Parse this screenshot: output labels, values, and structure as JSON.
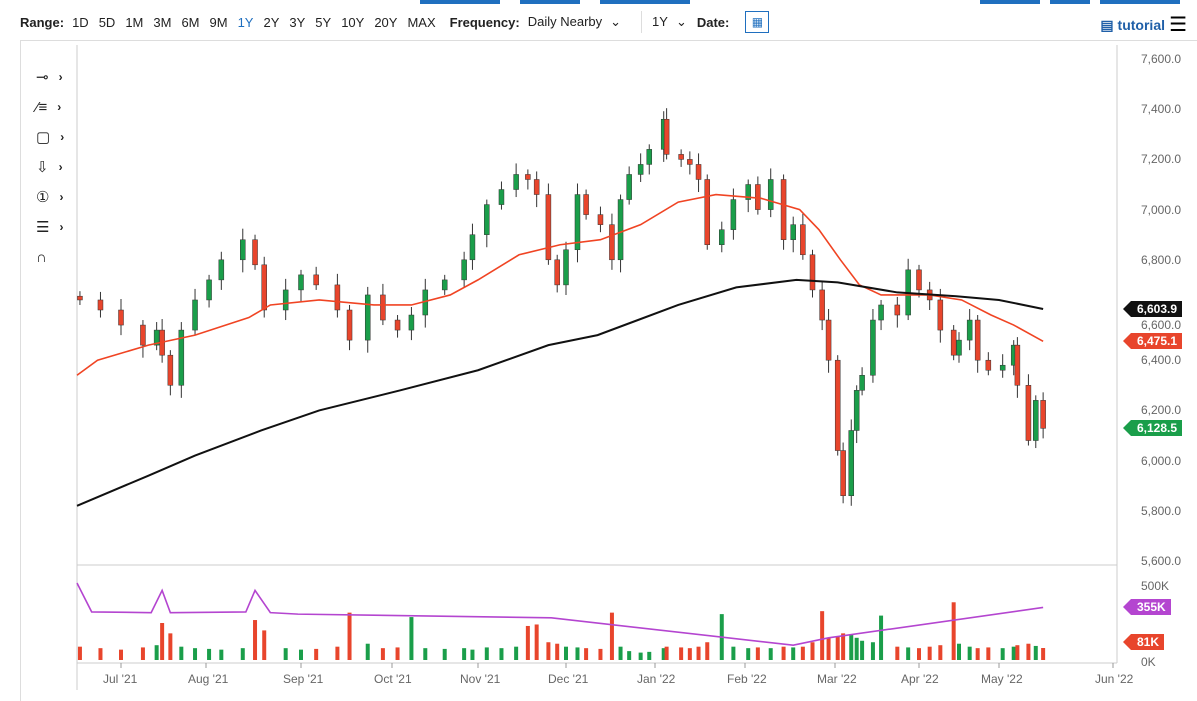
{
  "toolbar": {
    "range_label": "Range:",
    "ranges": [
      "1D",
      "5D",
      "1M",
      "3M",
      "6M",
      "9M",
      "1Y",
      "2Y",
      "3Y",
      "5Y",
      "10Y",
      "20Y",
      "MAX"
    ],
    "active_range": "1Y",
    "frequency_label": "Frequency:",
    "frequency_value": "Daily Nearby",
    "period_value": "1Y",
    "date_label": "Date:",
    "tutorial_label": "tutorial"
  },
  "tools": [
    "crosshair",
    "trendline",
    "rectangle",
    "arrow",
    "counter",
    "fibonacci",
    "magnet"
  ],
  "colors": {
    "up": "#1a9e4a",
    "down": "#e8452c",
    "ma_short": "#f04423",
    "ma_long": "#111111",
    "volume_ma": "#b445d0"
  },
  "chart_data": {
    "type": "candlestick",
    "y_ticks": [
      "7,600.0",
      "7,400.0",
      "7,200.0",
      "7,000.0",
      "6,800.0",
      "6,600.0",
      "6,400.0",
      "6,200.0",
      "6,000.0",
      "5,800.0",
      "5,600.0"
    ],
    "ylim": [
      5600,
      7600
    ],
    "volume_ticks": [
      "500K",
      "0K"
    ],
    "x_ticks": [
      "Jul '21",
      "Aug '21",
      "Sep '21",
      "Oct '21",
      "Nov '21",
      "Dec '21",
      "Jan '22",
      "Feb '22",
      "Mar '22",
      "Apr '22",
      "May '22",
      "Jun '22"
    ],
    "last_labels": {
      "ma_long": "6,603.9",
      "ma_short": "6,475.1",
      "close": "6,128.5",
      "volume_ma": "355K",
      "volume": "81K"
    },
    "points": [
      [
        "2021-06-17",
        6640,
        90
      ],
      [
        "2021-06-24",
        6600,
        80
      ],
      [
        "2021-07-01",
        6540,
        70
      ],
      [
        "2021-07-09",
        6460,
        85
      ],
      [
        "2021-07-14",
        6520,
        100
      ],
      [
        "2021-07-16",
        6420,
        250
      ],
      [
        "2021-07-19",
        6300,
        180
      ],
      [
        "2021-07-23",
        6520,
        90
      ],
      [
        "2021-07-28",
        6640,
        80
      ],
      [
        "2021-08-02",
        6720,
        75
      ],
      [
        "2021-08-06",
        6800,
        70
      ],
      [
        "2021-08-13",
        6880,
        80
      ],
      [
        "2021-08-17",
        6780,
        270
      ],
      [
        "2021-08-20",
        6600,
        200
      ],
      [
        "2021-08-27",
        6680,
        80
      ],
      [
        "2021-09-01",
        6740,
        70
      ],
      [
        "2021-09-06",
        6700,
        75
      ],
      [
        "2021-09-13",
        6600,
        90
      ],
      [
        "2021-09-17",
        6480,
        320
      ],
      [
        "2021-09-23",
        6660,
        110
      ],
      [
        "2021-09-28",
        6560,
        80
      ],
      [
        "2021-10-03",
        6520,
        85
      ],
      [
        "2021-10-08",
        6580,
        290
      ],
      [
        "2021-10-13",
        6680,
        80
      ],
      [
        "2021-10-20",
        6720,
        75
      ],
      [
        "2021-10-27",
        6800,
        80
      ],
      [
        "2021-10-30",
        6900,
        70
      ],
      [
        "2021-11-04",
        7020,
        85
      ],
      [
        "2021-11-09",
        7080,
        80
      ],
      [
        "2021-11-14",
        7140,
        90
      ],
      [
        "2021-11-18",
        7120,
        230
      ],
      [
        "2021-11-21",
        7060,
        240
      ],
      [
        "2021-11-25",
        6800,
        120
      ],
      [
        "2021-11-28",
        6700,
        110
      ],
      [
        "2021-12-01",
        6840,
        90
      ],
      [
        "2021-12-05",
        7060,
        85
      ],
      [
        "2021-12-08",
        6980,
        80
      ],
      [
        "2021-12-13",
        6940,
        75
      ],
      [
        "2021-12-17",
        6800,
        320
      ],
      [
        "2021-12-20",
        7040,
        90
      ],
      [
        "2021-12-23",
        7140,
        60
      ],
      [
        "2021-12-27",
        7180,
        50
      ],
      [
        "2021-12-30",
        7240,
        55
      ],
      [
        "2022-01-04",
        7360,
        80
      ],
      [
        "2022-01-05",
        7220,
        90
      ],
      [
        "2022-01-10",
        7200,
        85
      ],
      [
        "2022-01-13",
        7180,
        80
      ],
      [
        "2022-01-16",
        7120,
        90
      ],
      [
        "2022-01-19",
        6860,
        120
      ],
      [
        "2022-01-24",
        6920,
        310
      ],
      [
        "2022-01-28",
        7040,
        90
      ],
      [
        "2022-02-02",
        7100,
        80
      ],
      [
        "2022-02-05",
        7000,
        85
      ],
      [
        "2022-02-09",
        7120,
        80
      ],
      [
        "2022-02-13",
        6880,
        90
      ],
      [
        "2022-02-16",
        6940,
        85
      ],
      [
        "2022-02-19",
        6820,
        90
      ],
      [
        "2022-02-22",
        6680,
        120
      ],
      [
        "2022-02-25",
        6560,
        330
      ],
      [
        "2022-02-27",
        6400,
        150
      ],
      [
        "2022-03-02",
        6040,
        160
      ],
      [
        "2022-03-04",
        5860,
        180
      ],
      [
        "2022-03-07",
        6120,
        170
      ],
      [
        "2022-03-09",
        6280,
        150
      ],
      [
        "2022-03-11",
        6340,
        130
      ],
      [
        "2022-03-15",
        6560,
        120
      ],
      [
        "2022-03-18",
        6620,
        300
      ],
      [
        "2022-03-24",
        6580,
        90
      ],
      [
        "2022-03-28",
        6760,
        85
      ],
      [
        "2022-04-01",
        6680,
        80
      ],
      [
        "2022-04-05",
        6640,
        90
      ],
      [
        "2022-04-09",
        6520,
        100
      ],
      [
        "2022-04-14",
        6420,
        390
      ],
      [
        "2022-04-16",
        6480,
        110
      ],
      [
        "2022-04-20",
        6560,
        90
      ],
      [
        "2022-04-23",
        6400,
        80
      ],
      [
        "2022-04-27",
        6360,
        85
      ],
      [
        "2022-05-02",
        6380,
        80
      ],
      [
        "2022-05-05",
        6460,
        90
      ],
      [
        "2022-05-06",
        6300,
        100
      ],
      [
        "2022-05-09",
        6080,
        110
      ],
      [
        "2022-05-11",
        6240,
        95
      ],
      [
        "2022-05-13",
        6128.5,
        81
      ]
    ],
    "ma_short": [
      [
        "2021-06-16",
        6340
      ],
      [
        "2021-06-23",
        6400
      ],
      [
        "2021-07-11",
        6460
      ],
      [
        "2021-07-28",
        6500
      ],
      [
        "2021-08-15",
        6570
      ],
      [
        "2021-08-22",
        6620
      ],
      [
        "2021-09-07",
        6640
      ],
      [
        "2021-09-25",
        6620
      ],
      [
        "2021-10-08",
        6620
      ],
      [
        "2021-10-22",
        6660
      ],
      [
        "2021-11-01",
        6720
      ],
      [
        "2021-11-15",
        6820
      ],
      [
        "2021-11-29",
        6860
      ],
      [
        "2021-12-13",
        6880
      ],
      [
        "2021-12-27",
        6940
      ],
      [
        "2022-01-09",
        7030
      ],
      [
        "2022-01-22",
        7060
      ],
      [
        "2022-02-06",
        7045
      ],
      [
        "2022-02-18",
        7000
      ],
      [
        "2022-02-24",
        6920
      ],
      [
        "2022-03-03",
        6800
      ],
      [
        "2022-03-10",
        6700
      ],
      [
        "2022-03-18",
        6660
      ],
      [
        "2022-03-28",
        6660
      ],
      [
        "2022-04-05",
        6660
      ],
      [
        "2022-04-17",
        6640
      ],
      [
        "2022-04-28",
        6580
      ],
      [
        "2022-05-05",
        6540
      ],
      [
        "2022-05-13",
        6475.1
      ]
    ],
    "ma_long": [
      [
        "2021-06-16",
        5820
      ],
      [
        "2021-07-11",
        5940
      ],
      [
        "2021-07-28",
        6020
      ],
      [
        "2021-08-19",
        6120
      ],
      [
        "2021-09-07",
        6200
      ],
      [
        "2021-10-04",
        6280
      ],
      [
        "2021-11-01",
        6360
      ],
      [
        "2021-11-25",
        6460
      ],
      [
        "2021-12-12",
        6500
      ],
      [
        "2022-01-09",
        6620
      ],
      [
        "2022-01-29",
        6690
      ],
      [
        "2022-02-17",
        6720
      ],
      [
        "2022-03-02",
        6710
      ],
      [
        "2022-03-24",
        6670
      ],
      [
        "2022-04-15",
        6655
      ],
      [
        "2022-05-01",
        6640
      ],
      [
        "2022-05-13",
        6603.9
      ]
    ],
    "volume_ma": [
      [
        "2021-06-16",
        520
      ],
      [
        "2021-06-21",
        325
      ],
      [
        "2021-07-12",
        320
      ],
      [
        "2021-07-16",
        470
      ],
      [
        "2021-07-19",
        320
      ],
      [
        "2021-08-14",
        325
      ],
      [
        "2021-08-17",
        470
      ],
      [
        "2021-08-22",
        320
      ],
      [
        "2021-08-31",
        310
      ],
      [
        "2021-11-26",
        285
      ],
      [
        "2022-02-16",
        100
      ],
      [
        "2022-02-27",
        150
      ],
      [
        "2022-05-13",
        355
      ]
    ]
  }
}
